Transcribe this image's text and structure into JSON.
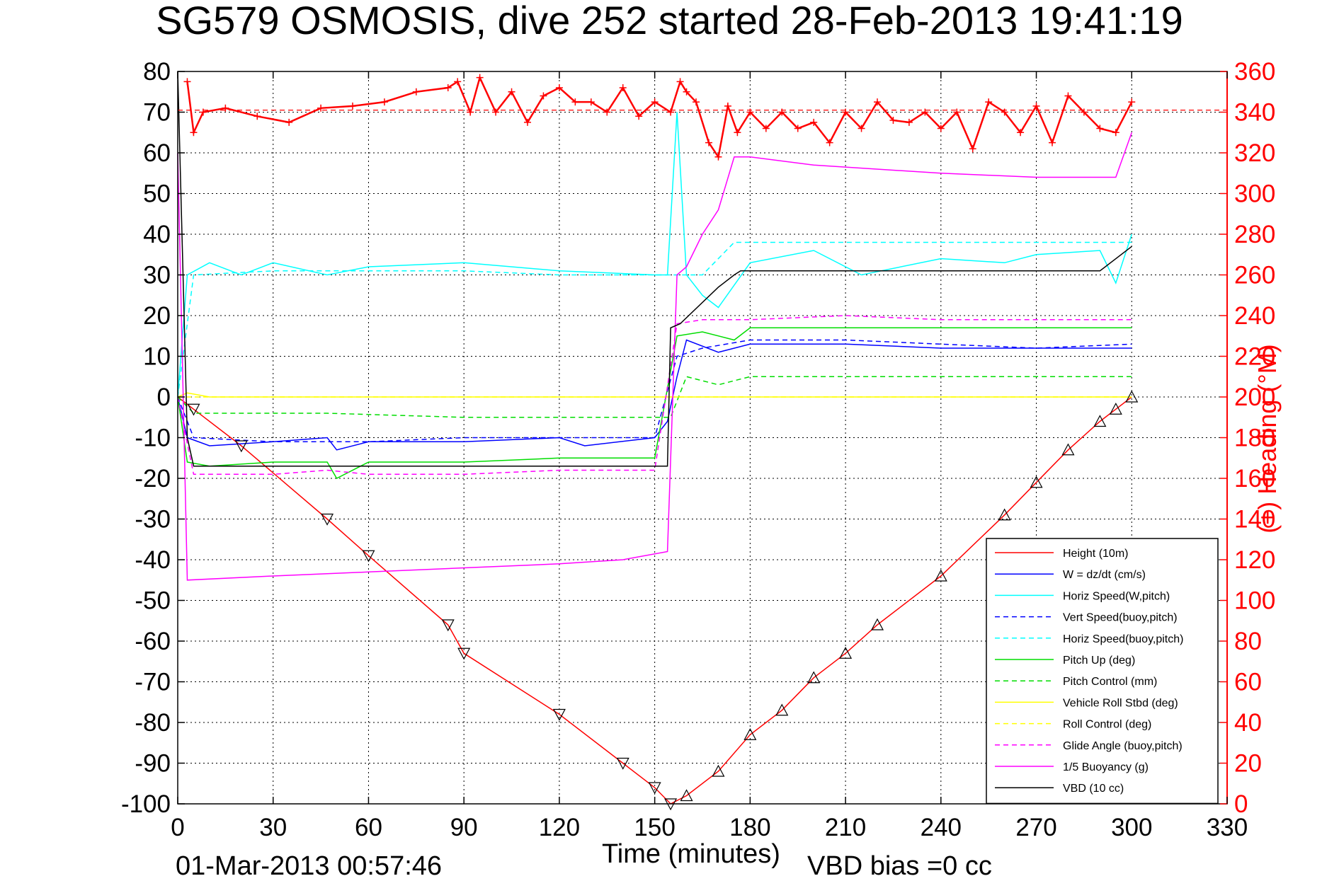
{
  "chart_data": {
    "type": "line",
    "title": "SG579 OSMOSIS, dive 252 started 28-Feb-2013 19:41:19",
    "xlabel": "Time (minutes)",
    "ylabel_right": "(+) Heading (°M)",
    "footer_left": "01-Mar-2013 00:57:46",
    "footer_right": "VBD bias =0 cc",
    "xlim": [
      0,
      330
    ],
    "ylim": [
      -100,
      80
    ],
    "ylim_right": [
      0,
      360
    ],
    "x_ticks": [
      "0",
      "30",
      "60",
      "90",
      "120",
      "150",
      "180",
      "210",
      "240",
      "270",
      "300",
      "330"
    ],
    "y_ticks": [
      "80",
      "70",
      "60",
      "50",
      "40",
      "30",
      "20",
      "10",
      "0",
      "-10",
      "-20",
      "-30",
      "-40",
      "-50",
      "-60",
      "-70",
      "-80",
      "-90",
      "-100"
    ],
    "y_ticks_right": [
      "360",
      "340",
      "320",
      "300",
      "280",
      "260",
      "240",
      "220",
      "200",
      "180",
      "160",
      "140",
      "120",
      "100",
      "80",
      "60",
      "40",
      "20",
      "0"
    ],
    "grid": true,
    "legend_position": "lower-right",
    "series": [
      {
        "name": "Height (10m)",
        "color": "#ff0000",
        "style": "solid",
        "x": [
          0,
          5,
          20,
          47,
          60,
          85,
          90,
          120,
          140,
          150,
          155,
          160,
          170,
          180,
          190,
          200,
          210,
          220,
          240,
          260,
          270,
          280,
          290,
          295,
          300
        ],
        "y": [
          0,
          -3,
          -12,
          -30,
          -39,
          -56,
          -63,
          -78,
          -90,
          -96,
          -100,
          -98,
          -92,
          -83,
          -77,
          -69,
          -63,
          -56,
          -44,
          -29,
          -21,
          -13,
          -6,
          -3,
          0
        ]
      },
      {
        "name": "W = dz/dt (cm/s)",
        "color": "#0000ff",
        "style": "solid",
        "x": [
          0,
          3,
          10,
          30,
          47,
          50,
          60,
          90,
          120,
          128,
          150,
          154,
          157,
          160,
          170,
          180,
          210,
          240,
          270,
          295,
          300
        ],
        "y": [
          0,
          -10,
          -12,
          -11,
          -10,
          -13,
          -11,
          -11,
          -10,
          -12,
          -10,
          -6,
          5,
          14,
          11,
          13,
          13,
          12,
          12,
          12,
          12
        ]
      },
      {
        "name": "Horiz Speed(W,pitch)",
        "color": "#00ffff",
        "style": "solid",
        "x": [
          0,
          3,
          10,
          20,
          30,
          47,
          60,
          90,
          120,
          150,
          154,
          157,
          160,
          165,
          170,
          180,
          200,
          215,
          240,
          260,
          270,
          290,
          295,
          300
        ],
        "y": [
          0,
          30,
          33,
          30,
          33,
          30,
          32,
          33,
          31,
          30,
          30,
          70,
          30,
          25,
          22,
          33,
          36,
          30,
          34,
          33,
          35,
          36,
          28,
          40
        ]
      },
      {
        "name": "Vert Speed(buoy,pitch)",
        "color": "#0000ff",
        "style": "dashed",
        "x": [
          0,
          5,
          30,
          60,
          90,
          120,
          150,
          157,
          165,
          180,
          210,
          240,
          270,
          300
        ],
        "y": [
          0,
          -10,
          -11,
          -11,
          -10,
          -10,
          -10,
          10,
          12,
          14,
          14,
          13,
          12,
          13
        ]
      },
      {
        "name": "Horiz Speed(buoy,pitch)",
        "color": "#00ffff",
        "style": "dashed",
        "x": [
          0,
          5,
          30,
          60,
          90,
          120,
          150,
          157,
          165,
          175,
          180,
          210,
          240,
          270,
          300
        ],
        "y": [
          0,
          30,
          31,
          31,
          31,
          30,
          30,
          30,
          30,
          38,
          38,
          38,
          38,
          38,
          38
        ]
      },
      {
        "name": "Pitch Up (deg)",
        "color": "#00dd00",
        "style": "solid",
        "x": [
          0,
          3,
          10,
          30,
          47,
          50,
          60,
          90,
          120,
          150,
          157,
          165,
          175,
          180,
          210,
          240,
          270,
          300
        ],
        "y": [
          0,
          -16,
          -17,
          -16,
          -16,
          -20,
          -16,
          -16,
          -15,
          -15,
          15,
          16,
          14,
          17,
          17,
          17,
          17,
          17
        ]
      },
      {
        "name": "Pitch Control (mm)",
        "color": "#00dd00",
        "style": "dashed",
        "x": [
          0,
          5,
          47,
          90,
          120,
          150,
          155,
          160,
          170,
          175,
          180,
          300
        ],
        "y": [
          0,
          -4,
          -4,
          -5,
          -5,
          -5,
          -5,
          5,
          3,
          4,
          5,
          5
        ]
      },
      {
        "name": "Vehicle Roll Stbd (deg)",
        "color": "#ffff00",
        "style": "solid",
        "x": [
          0,
          3,
          10,
          60,
          85,
          90,
          120,
          150,
          155,
          160,
          180,
          210,
          240,
          270,
          300
        ],
        "y": [
          0,
          1,
          0,
          0,
          0,
          0,
          0,
          0,
          0,
          0,
          0,
          0,
          0,
          0,
          0
        ]
      },
      {
        "name": "Roll Control (deg)",
        "color": "#ffff00",
        "style": "dashed",
        "x": [
          0,
          150,
          300
        ],
        "y": [
          0,
          0,
          0
        ]
      },
      {
        "name": "Glide Angle (buoy,pitch)",
        "color": "#ff00ff",
        "style": "dashed",
        "x": [
          0,
          5,
          30,
          47,
          60,
          90,
          120,
          150,
          157,
          165,
          180,
          210,
          240,
          270,
          300
        ],
        "y": [
          0,
          -19,
          -19,
          -18,
          -19,
          -19,
          -18,
          -18,
          18,
          19,
          19,
          20,
          19,
          19,
          19
        ]
      },
      {
        "name": "1/5 Buoyancy (g)",
        "color": "#ff00ff",
        "style": "solid",
        "x": [
          0,
          3,
          30,
          60,
          90,
          120,
          140,
          154,
          157,
          160,
          165,
          170,
          175,
          180,
          200,
          240,
          270,
          295,
          300
        ],
        "y": [
          60,
          -45,
          -44,
          -43,
          -42,
          -41,
          -40,
          -38,
          30,
          32,
          40,
          46,
          59,
          59,
          57,
          55,
          54,
          54,
          65
        ]
      },
      {
        "name": "VBD (10 cc)",
        "color": "#000000",
        "style": "solid",
        "x": [
          0,
          3,
          5,
          154,
          155,
          158,
          170,
          175,
          177,
          180,
          200,
          240,
          270,
          290,
          300
        ],
        "y": [
          80,
          -10,
          -17,
          -17,
          17,
          18,
          27,
          30,
          31,
          31,
          31,
          31,
          31,
          31,
          37
        ]
      }
    ],
    "heading": {
      "name": "Heading",
      "color": "#ff0000",
      "marker": "+",
      "axis": "right",
      "mean": 341,
      "x": [
        3,
        5,
        8,
        15,
        25,
        35,
        45,
        55,
        65,
        75,
        85,
        88,
        92,
        95,
        100,
        105,
        110,
        115,
        120,
        125,
        130,
        135,
        140,
        145,
        150,
        155,
        158,
        160,
        163,
        167,
        170,
        173,
        176,
        180,
        185,
        190,
        195,
        200,
        205,
        210,
        215,
        220,
        225,
        230,
        235,
        240,
        245,
        250,
        255,
        260,
        265,
        270,
        275,
        280,
        285,
        290,
        295,
        300
      ],
      "y": [
        355,
        330,
        340,
        342,
        338,
        335,
        342,
        343,
        345,
        350,
        352,
        355,
        340,
        357,
        340,
        350,
        335,
        348,
        352,
        345,
        345,
        340,
        352,
        338,
        345,
        340,
        355,
        350,
        345,
        325,
        318,
        343,
        330,
        340,
        332,
        340,
        332,
        335,
        325,
        340,
        332,
        345,
        336,
        335,
        340,
        332,
        340,
        322,
        345,
        340,
        330,
        343,
        325,
        348,
        340,
        332,
        330,
        345
      ]
    }
  }
}
